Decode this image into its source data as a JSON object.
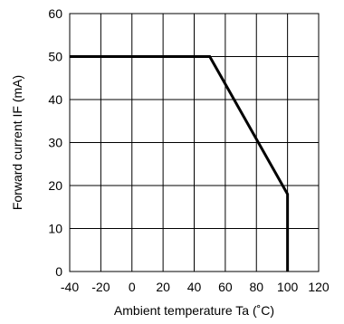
{
  "chart_data": {
    "type": "line",
    "xlabel": "Ambient temperature Ta (˚C)",
    "ylabel": "Forward current IF (mA)",
    "xlim": [
      -40,
      120
    ],
    "ylim": [
      0,
      60
    ],
    "x_ticks": [
      "-40",
      "-20",
      "0",
      "20",
      "40",
      "60",
      "80",
      "100",
      "120"
    ],
    "y_ticks": [
      "0",
      "10",
      "20",
      "30",
      "40",
      "50",
      "60"
    ],
    "grid": true,
    "series": [
      {
        "x": [
          -40,
          50,
          100,
          100
        ],
        "y": [
          50,
          50,
          18,
          0
        ]
      }
    ],
    "colors": {
      "line": "#000000",
      "grid": "#000000",
      "background": "#ffffff"
    }
  }
}
